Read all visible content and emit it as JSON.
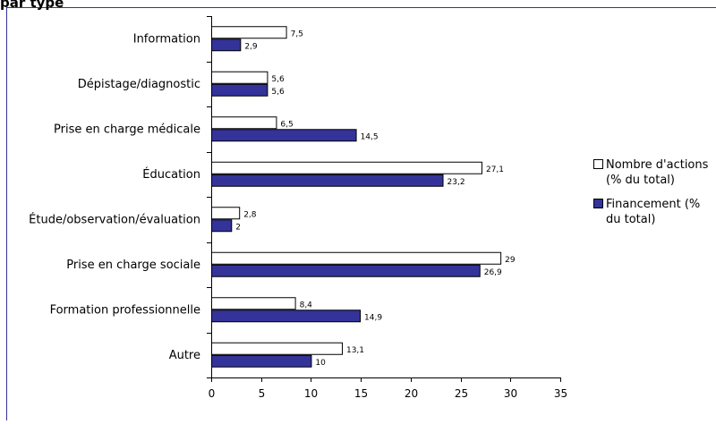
{
  "header": {
    "title_fragment": "par type"
  },
  "chart_data": {
    "type": "bar",
    "orientation": "horizontal",
    "title": "",
    "categories": [
      "Information",
      "Dépistage/diagnostic",
      "Prise en charge médicale",
      "Éducation",
      "Étude/observation/évaluation",
      "Prise en charge sociale",
      "Formation professionnelle",
      "Autre"
    ],
    "series": [
      {
        "name": "Nombre d'actions (% du total)",
        "color": "#ffffff",
        "values": [
          7.5,
          5.6,
          6.5,
          27.1,
          2.8,
          29,
          8.4,
          13.1
        ],
        "labels": [
          "7,5",
          "5,6",
          "6,5",
          "27,1",
          "2,8",
          "29",
          "8,4",
          "13,1"
        ]
      },
      {
        "name": "Financement (% du total)",
        "color": "#333399",
        "values": [
          2.9,
          5.6,
          14.5,
          23.2,
          2,
          26.9,
          14.9,
          10
        ],
        "labels": [
          "2,9",
          "5,6",
          "14,5",
          "23,2",
          "2",
          "26,9",
          "14,9",
          "10"
        ]
      }
    ],
    "xlim": [
      0,
      35
    ],
    "xticks": [
      "0",
      "5",
      "10",
      "15",
      "20",
      "25",
      "30",
      "35"
    ],
    "legend_position": "right",
    "legend": [
      {
        "lines": [
          "Nombre d'actions",
          "(% du total)"
        ]
      },
      {
        "lines": [
          "Financement (%",
          "du total)"
        ]
      }
    ],
    "frame_color": "#333399"
  }
}
